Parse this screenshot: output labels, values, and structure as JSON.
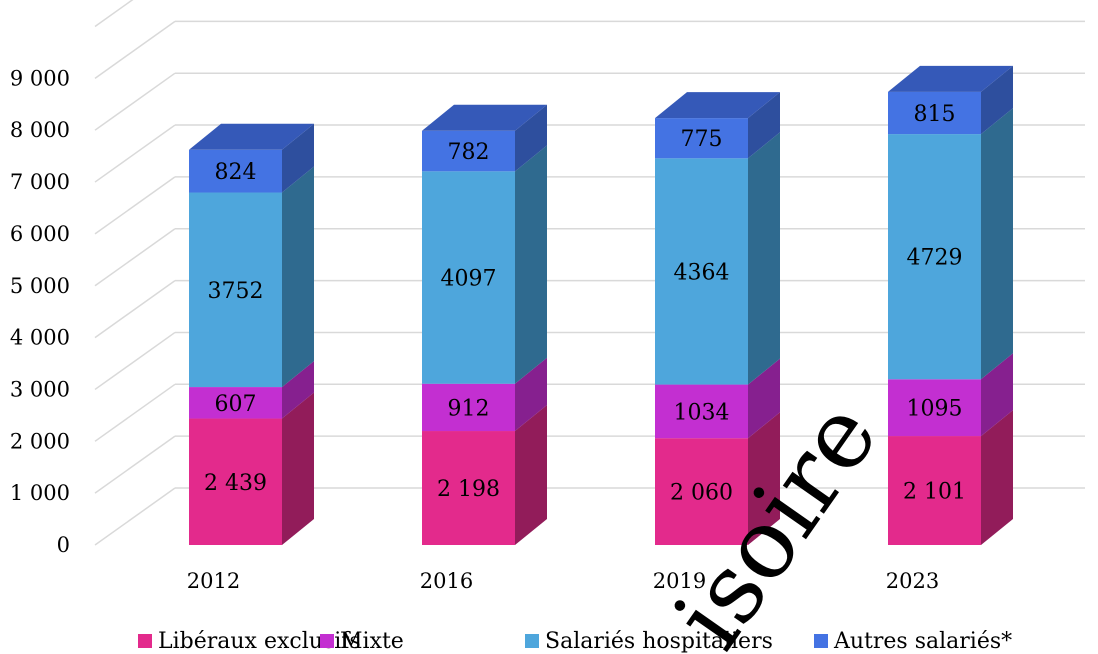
{
  "chart_data": {
    "type": "bar",
    "stacked": true,
    "three_d": true,
    "categories": [
      "2012",
      "2016",
      "2019",
      "2023"
    ],
    "series": [
      {
        "name": "Libéraux exclusifs",
        "values": [
          2439,
          2198,
          2060,
          2101
        ],
        "labels": [
          "2 439",
          "2 198",
          "2 060",
          "2 101"
        ],
        "color": "#e32a8c",
        "side_color": "#921c5a"
      },
      {
        "name": "Mixte",
        "values": [
          607,
          912,
          1034,
          1095
        ],
        "labels": [
          "607",
          "912",
          "1034",
          "1095"
        ],
        "color": "#c32fd1",
        "side_color": "#86208f"
      },
      {
        "name": "Salariés hospitaliers",
        "values": [
          3752,
          4097,
          4364,
          4729
        ],
        "labels": [
          "3752",
          "4097",
          "4364",
          "4729"
        ],
        "color": "#4ea6dc",
        "side_color": "#2f6a8f"
      },
      {
        "name": "Autres salariés*",
        "values": [
          824,
          782,
          775,
          815
        ],
        "labels": [
          "824",
          "782",
          "775",
          "815"
        ],
        "color": "#4473e3",
        "side_color": "#2e4f9e"
      }
    ],
    "y_ticks": [
      "0",
      "1 000",
      "2 000",
      "3 000",
      "4 000",
      "5 000",
      "6 000",
      "7 000",
      "8 000",
      "9 000"
    ],
    "ylim": [
      0,
      10000
    ],
    "grid": true,
    "legend_position": "bottom",
    "title": "",
    "xlabel": "",
    "ylabel": ""
  },
  "watermark": "isoire"
}
